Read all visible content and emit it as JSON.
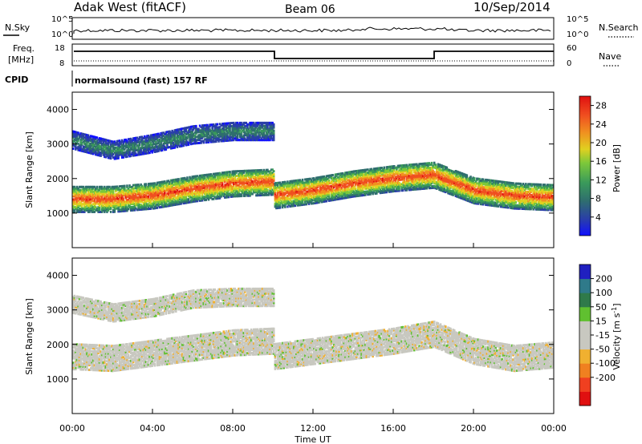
{
  "header": {
    "station": "Adak West (fitACF)",
    "beam": "Beam 06",
    "date": "10/Sep/2014"
  },
  "top_panel": {
    "left_label": "N.Sky",
    "right_label": "N.Search",
    "left_ticks": [
      "10^5",
      "10^0"
    ],
    "right_ticks": [
      "10^5",
      "10^0"
    ]
  },
  "freq_panel": {
    "left_label_line1": "Freq.",
    "left_label_line2": "[MHz]",
    "right_label": "Nave",
    "left_ticks": [
      "18",
      "8"
    ],
    "right_ticks": [
      "60",
      "0"
    ]
  },
  "cpid_panel": {
    "label": "CPID",
    "program": "normalsound (fast) 157 RF"
  },
  "colors": {
    "power_scale": [
      "#1010ff",
      "#2a3fa8",
      "#2f6e6e",
      "#3a9a5a",
      "#7cc83a",
      "#e0d020",
      "#f09020",
      "#f05020",
      "#e01010"
    ],
    "velocity_scale": [
      "#e01010",
      "#f04020",
      "#f08020",
      "#f0b030",
      "#c8c8c0",
      "#c8c8c0",
      "#60c030",
      "#2f7a4a",
      "#2f7a8a",
      "#2020c0"
    ]
  },
  "chart_data": [
    {
      "type": "heatmap",
      "title": "",
      "ylabel": "Slant Range [km]",
      "xlabel": "Time UT",
      "ylim": [
        0,
        4500
      ],
      "xlim": [
        0,
        24
      ],
      "yticks": [
        "4000",
        "3000",
        "2000",
        "1000"
      ],
      "xticks": [
        "00:00",
        "04:00",
        "08:00",
        "12:00",
        "16:00",
        "20:00",
        "00:00"
      ],
      "colorbar": {
        "label": "Power [dB]",
        "ticks": [
          "28",
          "24",
          "20",
          "16",
          "12",
          "8",
          "4"
        ],
        "range": [
          0,
          30
        ]
      },
      "features": [
        {
          "name": "main_band",
          "t": [
            0,
            2,
            4,
            6,
            8,
            10,
            10.01,
            12,
            14,
            16,
            18,
            20,
            22,
            24
          ],
          "range_km": [
            1450,
            1450,
            1550,
            1750,
            1900,
            1950,
            1550,
            1700,
            1900,
            2050,
            2150,
            1700,
            1550,
            1500
          ],
          "power_db": 28
        },
        {
          "name": "upper_band",
          "t": [
            0,
            2,
            4,
            6,
            8,
            10
          ],
          "range_km": [
            3150,
            2850,
            3050,
            3300,
            3400,
            3400
          ],
          "power_db": 10
        }
      ]
    },
    {
      "type": "heatmap",
      "title": "",
      "ylabel": "Slant Range [km]",
      "xlabel": "Time UT",
      "ylim": [
        0,
        4500
      ],
      "xlim": [
        0,
        24
      ],
      "yticks": [
        "4000",
        "3000",
        "2000",
        "1000"
      ],
      "xticks": [
        "00:00",
        "04:00",
        "08:00",
        "12:00",
        "16:00",
        "20:00",
        "00:00"
      ],
      "colorbar": {
        "label": "Velocity [m s^-1]",
        "ticks": [
          "200",
          "100",
          "50",
          "15",
          "-15",
          "-50",
          "-100",
          "-200"
        ],
        "range": [
          -250,
          250
        ]
      },
      "features": [
        {
          "name": "main_band",
          "t": [
            0,
            2,
            4,
            6,
            8,
            10,
            10.01,
            12,
            14,
            16,
            18,
            20,
            22,
            24
          ],
          "range_km": [
            1700,
            1650,
            1800,
            1950,
            2100,
            2150,
            1700,
            1850,
            2000,
            2150,
            2350,
            1850,
            1650,
            1750
          ],
          "velocity": 0
        },
        {
          "name": "upper_band",
          "t": [
            0,
            2,
            4,
            6,
            8,
            10
          ],
          "range_km": [
            3200,
            2950,
            3100,
            3350,
            3400,
            3400
          ],
          "velocity": 0
        }
      ]
    }
  ]
}
